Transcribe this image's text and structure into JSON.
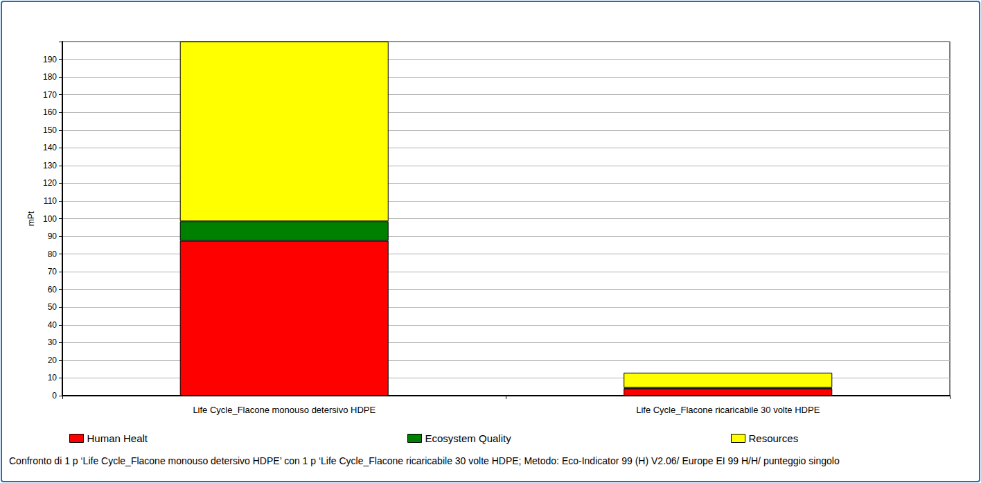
{
  "chart_data": {
    "type": "bar",
    "stacked": true,
    "title": "Confronto di 1 p ‘Life Cycle_Flacone monouso detersivo HDPE’ con 1 p ‘Life Cycle_Flacone ricaricabile 30 volte HDPE; Metodo: Eco-Indicator 99 (H) V2.06/ Europe EI 99 H/H/ punteggio singolo",
    "y_label": "mPt",
    "categories": [
      "Life Cycle_Flacone monouso detersivo HDPE",
      "Life Cycle_Flacone ricaricabile 30 volte HDPE"
    ],
    "series": [
      {
        "name": "Human Healt",
        "color": "#ff0000",
        "values": [
          87.5,
          4
        ]
      },
      {
        "name": "Ecosystem Quality",
        "color": "#008000",
        "values": [
          11,
          0.5
        ]
      },
      {
        "name": "Resources",
        "color": "#ffff00",
        "values": [
          101.5,
          8.5
        ]
      }
    ],
    "ylim": [
      0,
      200
    ],
    "yticks": [
      0,
      10,
      20,
      30,
      40,
      50,
      60,
      70,
      80,
      90,
      100,
      110,
      120,
      130,
      140,
      150,
      160,
      170,
      180,
      190
    ],
    "grid": true,
    "legend": "bottom"
  }
}
